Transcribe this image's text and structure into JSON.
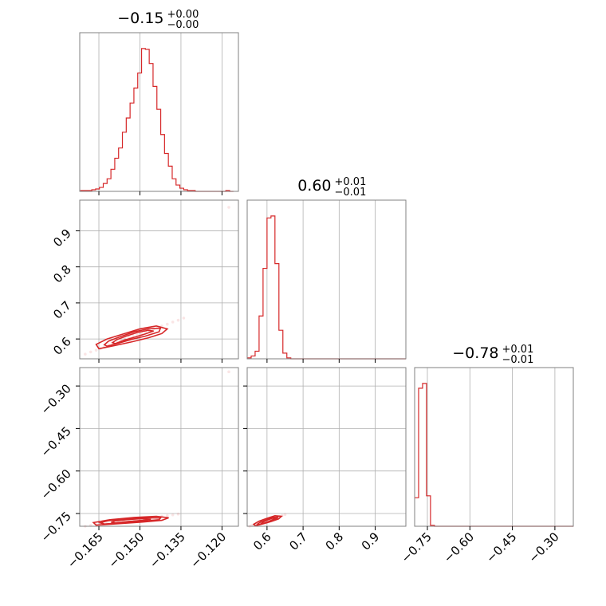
{
  "chart_data": {
    "type": "corner",
    "color": "#d62728",
    "parameters": [
      {
        "lim": [
          -0.172,
          -0.114
        ],
        "ticks": [
          -0.165,
          -0.15,
          -0.135,
          -0.12
        ],
        "tick_labels": [
          "−0.165",
          "−0.150",
          "−0.135",
          "−0.120"
        ],
        "title_main": "−0.15",
        "title_plus": "+0.00",
        "title_minus": "−0.00"
      },
      {
        "lim": [
          0.545,
          0.985
        ],
        "ticks": [
          0.6,
          0.7,
          0.8,
          0.9
        ],
        "tick_labels": [
          "0.6",
          "0.7",
          "0.8",
          "0.9"
        ],
        "title_main": "0.60",
        "title_plus": "+0.01",
        "title_minus": "−0.01"
      },
      {
        "lim": [
          -0.795,
          -0.235
        ],
        "ticks": [
          -0.75,
          -0.6,
          -0.45,
          -0.3
        ],
        "tick_labels": [
          "−0.75",
          "−0.60",
          "−0.45",
          "−0.30"
        ],
        "title_main": "−0.78",
        "title_plus": "+0.01",
        "title_minus": "−0.01"
      }
    ],
    "histograms": [
      {
        "param": 0,
        "x": [
          -0.1718,
          -0.1704,
          -0.169,
          -0.1676,
          -0.1662,
          -0.1648,
          -0.1634,
          -0.162,
          -0.1606,
          -0.1592,
          -0.1578,
          -0.1564,
          -0.155,
          -0.1536,
          -0.1522,
          -0.1508,
          -0.1494,
          -0.148,
          -0.1466,
          -0.1452,
          -0.1438,
          -0.1424,
          -0.141,
          -0.1396,
          -0.1382,
          -0.1368,
          -0.1354,
          -0.134,
          -0.1326,
          -0.1312,
          -0.1298,
          -0.1284,
          -0.127,
          -0.1256,
          -0.1242,
          -0.1228,
          -0.1214,
          -0.12,
          -0.1186,
          -0.1172
        ],
        "counts": [
          1,
          1,
          1,
          2,
          3,
          5,
          10,
          16,
          28,
          42,
          55,
          75,
          93,
          112,
          131,
          150,
          181,
          180,
          162,
          133,
          104,
          72,
          48,
          32,
          16,
          8,
          4,
          2,
          1,
          1,
          0,
          0,
          0,
          0,
          0,
          0,
          0,
          0,
          1,
          0
        ]
      },
      {
        "param": 1,
        "x": [
          0.545,
          0.556,
          0.567,
          0.578,
          0.589,
          0.6,
          0.611,
          0.622,
          0.633,
          0.644,
          0.655,
          0.666,
          0.677,
          0.688,
          0.699,
          0.71,
          0.721,
          0.732,
          0.743,
          0.754,
          0.765,
          0.776,
          0.787,
          0.798,
          0.809,
          0.82,
          0.831,
          0.842,
          0.853,
          0.864,
          0.875,
          0.886,
          0.897,
          0.908,
          0.919,
          0.93,
          0.941,
          0.952,
          0.963,
          0.974
        ],
        "counts": [
          1,
          3,
          8,
          45,
          95,
          148,
          150,
          100,
          30,
          6,
          1,
          0,
          0,
          0,
          0,
          0,
          0,
          0,
          0,
          0,
          0,
          0,
          0,
          0,
          0,
          0,
          0,
          0,
          0,
          0,
          0,
          0,
          0,
          0,
          0,
          0,
          0,
          0,
          0,
          0
        ]
      },
      {
        "param": 2,
        "x": [
          -0.795,
          -0.781,
          -0.767,
          -0.753,
          -0.739,
          -0.725,
          -0.711,
          -0.697,
          -0.683,
          -0.669,
          -0.655,
          -0.641,
          -0.627,
          -0.613,
          -0.599,
          -0.585,
          -0.571,
          -0.557,
          -0.543,
          -0.529,
          -0.515,
          -0.501,
          -0.487,
          -0.473,
          -0.459,
          -0.445,
          -0.431,
          -0.417,
          -0.403,
          -0.389,
          -0.375,
          -0.361,
          -0.347,
          -0.333,
          -0.319,
          -0.305,
          -0.291,
          -0.277,
          -0.263,
          -0.249
        ],
        "counts": [
          30,
          145,
          150,
          32,
          1,
          0,
          0,
          0,
          0,
          0,
          0,
          0,
          0,
          0,
          0,
          0,
          0,
          0,
          0,
          0,
          0,
          0,
          0,
          0,
          0,
          0,
          0,
          0,
          0,
          0,
          0,
          0,
          0,
          0,
          0,
          0,
          0,
          0,
          0,
          0
        ]
      }
    ],
    "pairs": [
      {
        "x_param": 0,
        "y_param": 1,
        "points": [
          [
            -0.17,
            0.558
          ],
          [
            -0.168,
            0.564
          ],
          [
            -0.166,
            0.569
          ],
          [
            -0.1645,
            0.573
          ],
          [
            -0.163,
            0.578
          ],
          [
            -0.1615,
            0.584
          ],
          [
            -0.16,
            0.588
          ],
          [
            -0.1585,
            0.592
          ],
          [
            -0.157,
            0.596
          ],
          [
            -0.1555,
            0.6
          ],
          [
            -0.154,
            0.605
          ],
          [
            -0.1525,
            0.609
          ],
          [
            -0.151,
            0.612
          ],
          [
            -0.1495,
            0.616
          ],
          [
            -0.148,
            0.62
          ],
          [
            -0.1465,
            0.624
          ],
          [
            -0.145,
            0.628
          ],
          [
            -0.1435,
            0.632
          ],
          [
            -0.142,
            0.636
          ],
          [
            -0.14,
            0.641
          ],
          [
            -0.138,
            0.647
          ],
          [
            -0.136,
            0.652
          ],
          [
            -0.134,
            0.658
          ],
          [
            -0.1175,
            0.965
          ]
        ],
        "contours": [
          [
            [
              -0.159,
              0.587
            ],
            [
              -0.156,
              0.596
            ],
            [
              -0.152,
              0.605
            ],
            [
              -0.148,
              0.614
            ],
            [
              -0.145,
              0.622
            ],
            [
              -0.147,
              0.624
            ],
            [
              -0.151,
              0.618
            ],
            [
              -0.155,
              0.608
            ],
            [
              -0.1585,
              0.598
            ],
            [
              -0.16,
              0.59
            ],
            [
              -0.159,
              0.587
            ]
          ],
          [
            [
              -0.162,
              0.58
            ],
            [
              -0.1575,
              0.589
            ],
            [
              -0.153,
              0.599
            ],
            [
              -0.148,
              0.608
            ],
            [
              -0.143,
              0.62
            ],
            [
              -0.1425,
              0.63
            ],
            [
              -0.147,
              0.628
            ],
            [
              -0.152,
              0.62
            ],
            [
              -0.157,
              0.607
            ],
            [
              -0.1615,
              0.594
            ],
            [
              -0.163,
              0.584
            ],
            [
              -0.162,
              0.58
            ]
          ],
          [
            [
              -0.165,
              0.573
            ],
            [
              -0.159,
              0.582
            ],
            [
              -0.153,
              0.592
            ],
            [
              -0.147,
              0.603
            ],
            [
              -0.142,
              0.615
            ],
            [
              -0.14,
              0.628
            ],
            [
              -0.144,
              0.636
            ],
            [
              -0.15,
              0.628
            ],
            [
              -0.156,
              0.614
            ],
            [
              -0.162,
              0.6
            ],
            [
              -0.166,
              0.585
            ],
            [
              -0.165,
              0.573
            ]
          ]
        ]
      },
      {
        "x_param": 0,
        "y_param": 2,
        "points": [
          [
            -0.17,
            -0.795
          ],
          [
            -0.168,
            -0.792
          ],
          [
            -0.166,
            -0.789
          ],
          [
            -0.164,
            -0.786
          ],
          [
            -0.162,
            -0.783
          ],
          [
            -0.16,
            -0.78
          ],
          [
            -0.158,
            -0.778
          ],
          [
            -0.156,
            -0.776
          ],
          [
            -0.154,
            -0.773
          ],
          [
            -0.152,
            -0.771
          ],
          [
            -0.15,
            -0.769
          ],
          [
            -0.148,
            -0.767
          ],
          [
            -0.146,
            -0.765
          ],
          [
            -0.144,
            -0.763
          ],
          [
            -0.142,
            -0.76
          ],
          [
            -0.14,
            -0.757
          ],
          [
            -0.138,
            -0.755
          ],
          [
            -0.136,
            -0.752
          ],
          [
            -0.1175,
            -0.25
          ]
        ],
        "contours": [
          [
            [
              -0.159,
              -0.783
            ],
            [
              -0.154,
              -0.778
            ],
            [
              -0.149,
              -0.774
            ],
            [
              -0.146,
              -0.77
            ],
            [
              -0.149,
              -0.768
            ],
            [
              -0.154,
              -0.771
            ],
            [
              -0.159,
              -0.776
            ],
            [
              -0.1605,
              -0.781
            ],
            [
              -0.159,
              -0.783
            ]
          ],
          [
            [
              -0.163,
              -0.787
            ],
            [
              -0.156,
              -0.782
            ],
            [
              -0.149,
              -0.777
            ],
            [
              -0.143,
              -0.772
            ],
            [
              -0.1425,
              -0.766
            ],
            [
              -0.148,
              -0.765
            ],
            [
              -0.155,
              -0.769
            ],
            [
              -0.162,
              -0.776
            ],
            [
              -0.1645,
              -0.783
            ],
            [
              -0.163,
              -0.787
            ]
          ],
          [
            [
              -0.166,
              -0.791
            ],
            [
              -0.158,
              -0.786
            ],
            [
              -0.149,
              -0.78
            ],
            [
              -0.142,
              -0.774
            ],
            [
              -0.1395,
              -0.765
            ],
            [
              -0.144,
              -0.76
            ],
            [
              -0.152,
              -0.764
            ],
            [
              -0.161,
              -0.772
            ],
            [
              -0.167,
              -0.782
            ],
            [
              -0.166,
              -0.791
            ]
          ]
        ]
      },
      {
        "x_param": 1,
        "y_param": 2,
        "points": [
          [
            0.552,
            -0.795
          ],
          [
            0.558,
            -0.792
          ],
          [
            0.565,
            -0.789
          ],
          [
            0.572,
            -0.786
          ],
          [
            0.579,
            -0.783
          ],
          [
            0.586,
            -0.78
          ],
          [
            0.593,
            -0.777
          ],
          [
            0.6,
            -0.775
          ],
          [
            0.607,
            -0.772
          ],
          [
            0.614,
            -0.769
          ],
          [
            0.621,
            -0.766
          ],
          [
            0.628,
            -0.763
          ],
          [
            0.635,
            -0.76
          ],
          [
            0.642,
            -0.757
          ],
          [
            0.65,
            -0.754
          ]
        ],
        "contours": [
          [
            [
              0.59,
              -0.785
            ],
            [
              0.603,
              -0.779
            ],
            [
              0.615,
              -0.772
            ],
            [
              0.623,
              -0.767
            ],
            [
              0.616,
              -0.766
            ],
            [
              0.603,
              -0.772
            ],
            [
              0.591,
              -0.779
            ],
            [
              0.585,
              -0.784
            ],
            [
              0.59,
              -0.785
            ]
          ],
          [
            [
              0.58,
              -0.789
            ],
            [
              0.598,
              -0.782
            ],
            [
              0.614,
              -0.775
            ],
            [
              0.628,
              -0.767
            ],
            [
              0.63,
              -0.762
            ],
            [
              0.614,
              -0.764
            ],
            [
              0.598,
              -0.772
            ],
            [
              0.582,
              -0.78
            ],
            [
              0.574,
              -0.787
            ],
            [
              0.58,
              -0.789
            ]
          ],
          [
            [
              0.568,
              -0.793
            ],
            [
              0.59,
              -0.786
            ],
            [
              0.612,
              -0.778
            ],
            [
              0.632,
              -0.769
            ],
            [
              0.64,
              -0.76
            ],
            [
              0.622,
              -0.758
            ],
            [
              0.6,
              -0.767
            ],
            [
              0.578,
              -0.777
            ],
            [
              0.563,
              -0.788
            ],
            [
              0.568,
              -0.793
            ]
          ]
        ]
      }
    ]
  }
}
